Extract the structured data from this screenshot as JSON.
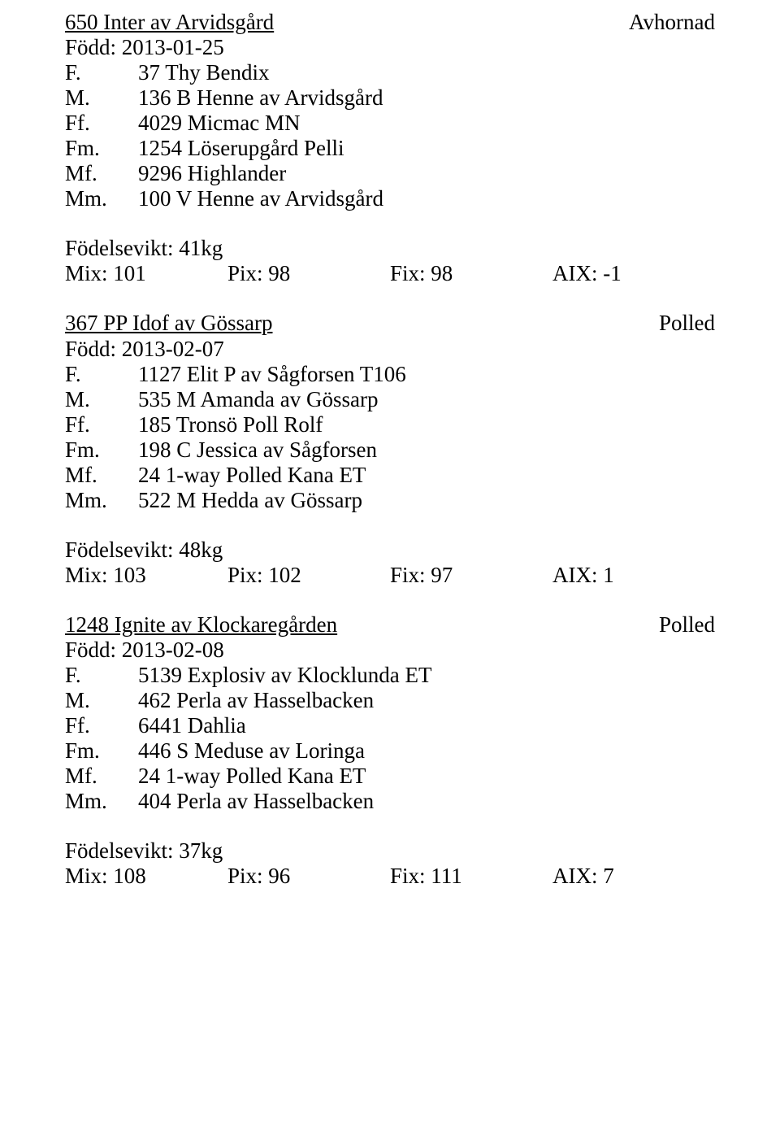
{
  "entries": [
    {
      "title": "650 Inter av Arvidsgård",
      "status": "Avhornad",
      "born_label": "Född:",
      "born_date": "2013-01-25",
      "lines": [
        {
          "abbr": "F.",
          "val": "37 Thy Bendix"
        },
        {
          "abbr": "M.",
          "val": "136 B Henne av Arvidsgård"
        },
        {
          "abbr": "Ff.",
          "val": "4029 Micmac MN"
        },
        {
          "abbr": "Fm.",
          "val": "1254 Löserupgård Pelli"
        },
        {
          "abbr": "Mf.",
          "val": "9296 Highlander"
        },
        {
          "abbr": "Mm.",
          "val": "100 V Henne av Arvidsgård"
        }
      ],
      "weight_label": "Födelsevikt:",
      "weight_value": "41kg",
      "mix": "Mix: 101",
      "pix": "Pix: 98",
      "fix": "Fix: 98",
      "aix": "AIX: -1"
    },
    {
      "title": "367 PP Idof  av Gössarp",
      "status": "Polled",
      "born_label": "Född:",
      "born_date": "2013-02-07",
      "lines": [
        {
          "abbr": "F.",
          "val": "1127 Elit P av Sågforsen T106"
        },
        {
          "abbr": "M.",
          "val": "535 M Amanda av Gössarp"
        },
        {
          "abbr": "Ff.",
          "val": "185 Tronsö Poll Rolf"
        },
        {
          "abbr": "Fm.",
          "val": "198 C Jessica av Sågforsen"
        },
        {
          "abbr": "Mf.",
          "val": "24 1-way Polled Kana ET"
        },
        {
          "abbr": "Mm.",
          "val": "522 M Hedda av Gössarp"
        }
      ],
      "weight_label": "Födelsevikt:",
      "weight_value": "48kg",
      "mix": "Mix: 103",
      "pix": "Pix: 102",
      "fix": "Fix: 97",
      "aix": "AIX: 1"
    },
    {
      "title": "1248 Ignite av Klockaregården",
      "status": "Polled",
      "born_label": "Född:",
      "born_date": "2013-02-08",
      "lines": [
        {
          "abbr": "F.",
          "val": "5139 Explosiv av Klocklunda ET"
        },
        {
          "abbr": "M.",
          "val": "462 Perla av Hasselbacken"
        },
        {
          "abbr": "Ff.",
          "val": "6441 Dahlia"
        },
        {
          "abbr": "Fm.",
          "val": "446 S Meduse av Loringa"
        },
        {
          "abbr": "Mf.",
          "val": "24 1-way Polled Kana ET"
        },
        {
          "abbr": "Mm.",
          "val": "404 Perla av Hasselbacken"
        }
      ],
      "weight_label": "Födelsevikt:",
      "weight_value": "37kg",
      "mix": "Mix: 108",
      "pix": "Pix: 96",
      "fix": "Fix: 111",
      "aix": "AIX: 7"
    }
  ]
}
